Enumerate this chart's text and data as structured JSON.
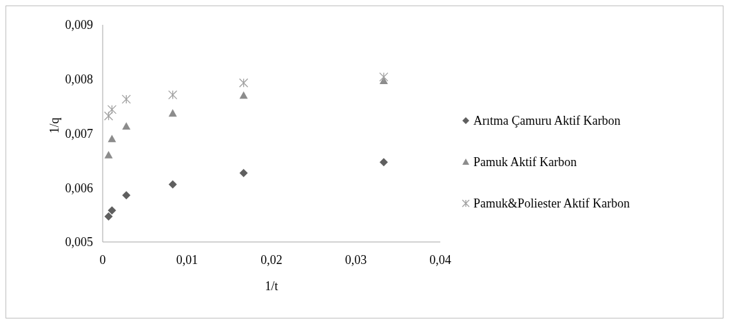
{
  "chart_data": {
    "type": "scatter",
    "xlabel": "1/t",
    "ylabel": "1/q",
    "x": [
      0.0007,
      0.0011,
      0.0028,
      0.0083,
      0.0167,
      0.0333
    ],
    "series": [
      {
        "name": "Arıtma Çamuru Aktif Karbon",
        "color": "#5f5f5f",
        "marker": "diamond",
        "values": [
          0.00547,
          0.00558,
          0.00586,
          0.00606,
          0.00627,
          0.00647
        ]
      },
      {
        "name": "Pamuk Aktif Karbon",
        "color": "#8c8c8c",
        "marker": "triangle",
        "values": [
          0.0066,
          0.0069,
          0.00713,
          0.00737,
          0.0077,
          0.00797
        ]
      },
      {
        "name": "Pamuk&Poliester Aktif Karbon",
        "color": "#a0a0a0",
        "marker": "cross",
        "values": [
          0.00732,
          0.00744,
          0.00763,
          0.00771,
          0.00793,
          0.00804
        ]
      }
    ],
    "xlim": [
      0,
      0.04
    ],
    "xticks": [
      0,
      {
        "value": 0.01,
        "label": "0,01"
      },
      {
        "value": 0.02,
        "label": "0,02"
      },
      {
        "value": 0.03,
        "label": "0,03"
      },
      {
        "value": 0.04,
        "label": "0,04"
      }
    ],
    "ylim": [
      0.005,
      0.009
    ],
    "yticks": [
      {
        "value": 0.005,
        "label": "0,005"
      },
      {
        "value": 0.006,
        "label": "0,006"
      },
      {
        "value": 0.007,
        "label": "0,007"
      },
      {
        "value": 0.008,
        "label": "0,008"
      },
      {
        "value": 0.009,
        "label": "0,009"
      }
    ],
    "grid": false,
    "legend": "right"
  }
}
